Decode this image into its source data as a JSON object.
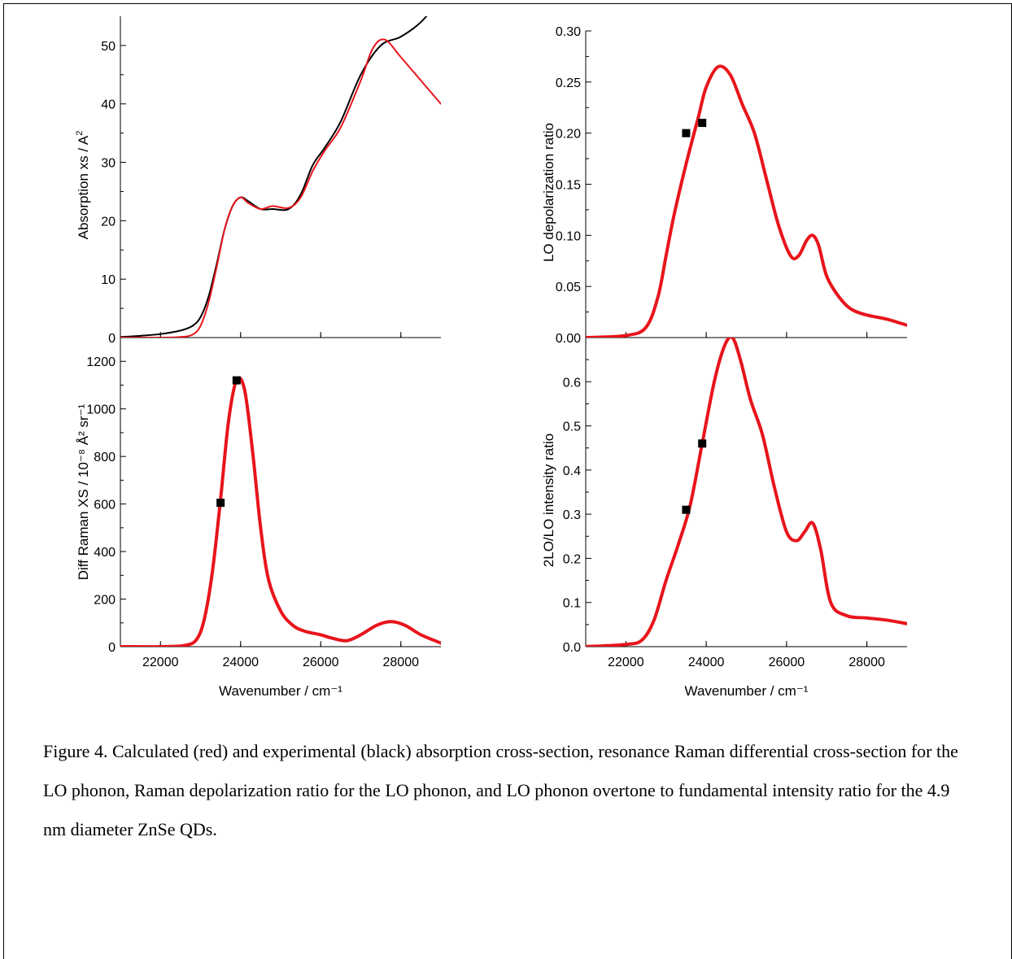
{
  "caption": "Figure 4.  Calculated (red) and experimental (black) absorption cross-section, resonance Raman differential cross-section for the LO phonon, Raman depolarization ratio for the LO phonon, and LO phonon overtone to fundamental intensity ratio for the 4.9 nm diameter ZnSe QDs.",
  "colors": {
    "calculated": "#e8141b",
    "experimental": "#000000"
  },
  "chart_data": [
    {
      "type": "line",
      "panel": "top-left",
      "ylabel": "Absorption xs / Å²",
      "ylabel_main": "Absorption xs / A",
      "ylabel_sup": "2",
      "xlabel": "",
      "xlim": [
        21000,
        29000
      ],
      "ylim": [
        0,
        55
      ],
      "xticks": [
        22000,
        24000,
        26000,
        28000
      ],
      "yticks": [
        0,
        10,
        20,
        30,
        40,
        50
      ],
      "show_x_tick_labels": false,
      "grid": false,
      "series": [
        {
          "role": "experimental",
          "style": "line",
          "color": "#000000",
          "x": [
            21000,
            21500,
            22000,
            22500,
            22800,
            23000,
            23200,
            23400,
            23600,
            23800,
            24000,
            24200,
            24500,
            24800,
            25200,
            25500,
            25800,
            26100,
            26500,
            27000,
            27500,
            28000,
            28500,
            29000
          ],
          "y": [
            0.1,
            0.3,
            0.6,
            1.2,
            2.0,
            3.5,
            7.0,
            12.5,
            18.5,
            22.5,
            24.0,
            23.3,
            22.0,
            22.0,
            22.0,
            24.5,
            29.5,
            32.5,
            37.0,
            45.0,
            50.0,
            51.5,
            54.0,
            58.0
          ]
        },
        {
          "role": "calculated",
          "style": "line",
          "color": "#e8141b",
          "x": [
            21000,
            22000,
            22500,
            22800,
            23000,
            23200,
            23400,
            23600,
            23800,
            24000,
            24200,
            24500,
            24800,
            25200,
            25500,
            25800,
            26100,
            26500,
            27000,
            27300,
            27600,
            28000,
            28500,
            29000
          ],
          "y": [
            0,
            0,
            0.1,
            0.5,
            2.0,
            6.0,
            12.0,
            18.5,
            22.5,
            24.0,
            23.0,
            22.0,
            22.5,
            22.2,
            24.0,
            28.5,
            32.0,
            36.0,
            44.0,
            49.5,
            51.0,
            48.0,
            44.0,
            40.0
          ]
        }
      ]
    },
    {
      "type": "line",
      "panel": "top-right",
      "ylabel": "LO depolarization ratio",
      "xlabel": "",
      "xlim": [
        21000,
        29000
      ],
      "ylim": [
        0,
        0.3
      ],
      "xticks": [
        22000,
        24000,
        26000,
        28000
      ],
      "yticks": [
        0.0,
        0.05,
        0.1,
        0.15,
        0.2,
        0.25,
        0.3
      ],
      "ytick_labels": [
        "0.00",
        "0.05",
        "0.10",
        "0.15",
        "0.20",
        "0.25",
        "0.30"
      ],
      "show_x_tick_labels": false,
      "grid": false,
      "series": [
        {
          "role": "calculated",
          "style": "line",
          "color": "#e8141b",
          "x": [
            21000,
            22000,
            22500,
            22800,
            23000,
            23200,
            23500,
            23800,
            24000,
            24300,
            24600,
            24900,
            25200,
            25500,
            25800,
            26100,
            26300,
            26500,
            26650,
            26800,
            27000,
            27300,
            27600,
            28000,
            28500,
            29000
          ],
          "y": [
            0.0,
            0.002,
            0.01,
            0.04,
            0.08,
            0.12,
            0.17,
            0.215,
            0.245,
            0.265,
            0.257,
            0.228,
            0.2,
            0.155,
            0.11,
            0.08,
            0.08,
            0.095,
            0.1,
            0.09,
            0.06,
            0.04,
            0.028,
            0.022,
            0.018,
            0.012
          ]
        },
        {
          "role": "experimental",
          "style": "markers",
          "color": "#000000",
          "x": [
            23500,
            23900
          ],
          "y": [
            0.2,
            0.21
          ]
        }
      ]
    },
    {
      "type": "line",
      "panel": "bottom-left",
      "ylabel": "Diff Raman XS / 10⁻⁸ Å² sr⁻¹",
      "xlabel": "Wavenumber / cm⁻¹",
      "xlim": [
        21000,
        29000
      ],
      "ylim": [
        0,
        1300
      ],
      "xticks": [
        22000,
        24000,
        26000,
        28000
      ],
      "yticks": [
        0,
        200,
        400,
        600,
        800,
        1000,
        1200
      ],
      "show_x_tick_labels": true,
      "grid": false,
      "series": [
        {
          "role": "calculated",
          "style": "dotted-line",
          "color": "#e8141b",
          "x": [
            21000,
            22000,
            22600,
            22900,
            23100,
            23300,
            23500,
            23700,
            23900,
            24100,
            24300,
            24500,
            24700,
            25000,
            25300,
            25600,
            26000,
            26300,
            26650,
            27000,
            27400,
            27750,
            28100,
            28500,
            29000
          ],
          "y": [
            0,
            0,
            5,
            30,
            120,
            320,
            620,
            950,
            1120,
            1080,
            820,
            500,
            280,
            150,
            90,
            65,
            50,
            35,
            25,
            50,
            90,
            105,
            90,
            50,
            15
          ]
        },
        {
          "role": "experimental",
          "style": "markers",
          "color": "#000000",
          "x": [
            23500,
            23900
          ],
          "y": [
            605,
            1120
          ]
        }
      ]
    },
    {
      "type": "line",
      "panel": "bottom-right",
      "ylabel": "2LO/LO intensity ratio",
      "xlabel": "Wavenumber / cm⁻¹",
      "xlim": [
        21000,
        29000
      ],
      "ylim": [
        0,
        0.7
      ],
      "xticks": [
        22000,
        24000,
        26000,
        28000
      ],
      "yticks": [
        0.0,
        0.1,
        0.2,
        0.3,
        0.4,
        0.5,
        0.6
      ],
      "ytick_labels": [
        "0.0",
        "0.1",
        "0.2",
        "0.3",
        "0.4",
        "0.5",
        "0.6"
      ],
      "show_x_tick_labels": true,
      "grid": false,
      "series": [
        {
          "role": "calculated",
          "style": "line",
          "color": "#e8141b",
          "x": [
            21000,
            22000,
            22400,
            22700,
            23000,
            23300,
            23600,
            23900,
            24200,
            24450,
            24650,
            24850,
            25100,
            25400,
            25700,
            26000,
            26250,
            26450,
            26650,
            26850,
            27100,
            27500,
            28000,
            28500,
            29000
          ],
          "y": [
            0.0,
            0.005,
            0.015,
            0.06,
            0.15,
            0.23,
            0.32,
            0.46,
            0.6,
            0.68,
            0.7,
            0.65,
            0.56,
            0.48,
            0.36,
            0.26,
            0.24,
            0.26,
            0.28,
            0.22,
            0.1,
            0.07,
            0.065,
            0.06,
            0.052
          ]
        },
        {
          "role": "experimental",
          "style": "markers",
          "color": "#000000",
          "x": [
            23500,
            23900
          ],
          "y": [
            0.31,
            0.46
          ]
        }
      ]
    }
  ]
}
